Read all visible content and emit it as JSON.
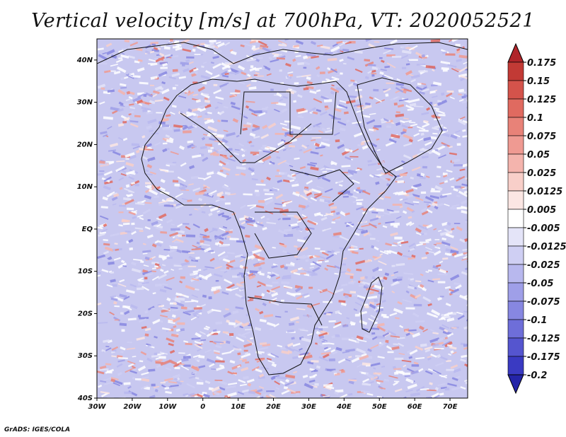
{
  "title": "Vertical velocity [m/s] at 700hPa, VT: 2020052521",
  "credit": "GrADS: IGES/COLA",
  "map": {
    "projection": "latlon",
    "lon_range": [
      -30,
      75
    ],
    "lat_range": [
      -40,
      45
    ],
    "x_ticks": [
      "30W",
      "20W",
      "10W",
      "0",
      "10E",
      "20E",
      "30E",
      "40E",
      "50E",
      "60E",
      "70E"
    ],
    "y_ticks": [
      "40S",
      "30S",
      "20S",
      "10S",
      "EQ",
      "10N",
      "20N",
      "30N",
      "40N"
    ],
    "background_color": "#c8c8f0"
  },
  "colorbar": {
    "levels": [
      "0.175",
      "0.15",
      "0.125",
      "0.1",
      "0.075",
      "0.05",
      "0.025",
      "0.0125",
      "0.005",
      "-0.005",
      "-0.0125",
      "-0.025",
      "-0.05",
      "-0.075",
      "-0.1",
      "-0.125",
      "-0.175",
      "-0.2"
    ],
    "colors": [
      "#b0252a",
      "#c23a35",
      "#d4534b",
      "#e06a60",
      "#e88278",
      "#ef9a92",
      "#f4b4ad",
      "#f8cfc9",
      "#fbe6e3",
      "#ffffff",
      "#e4e4f8",
      "#cfcff3",
      "#b8b8ee",
      "#9f9fe8",
      "#8787e1",
      "#6e6ed9",
      "#5555cf",
      "#3a3ac2",
      "#2424a8"
    ]
  }
}
